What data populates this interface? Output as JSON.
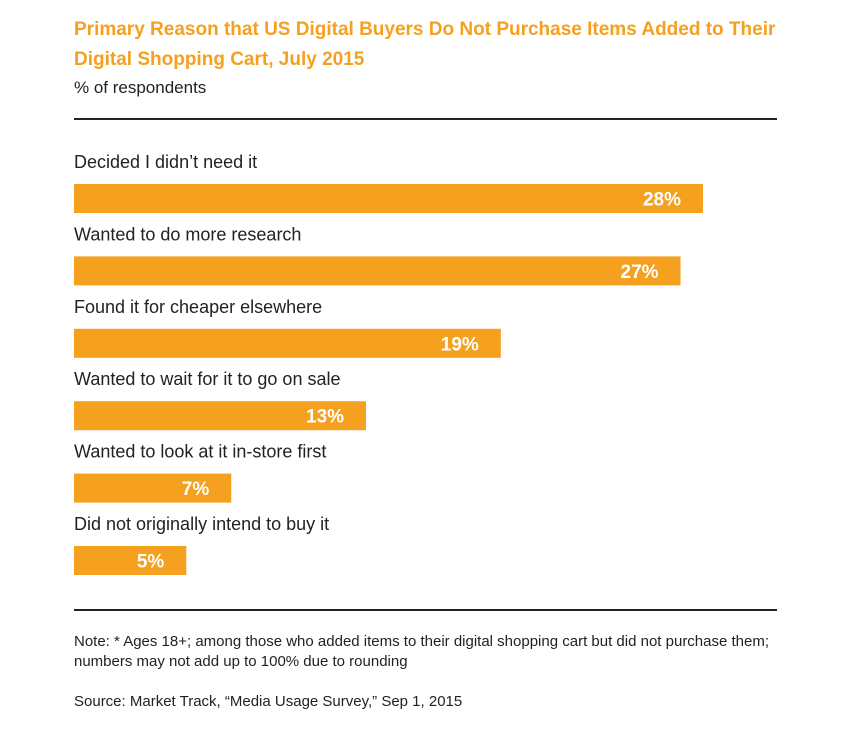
{
  "header": {
    "title": "Primary Reason that US Digital Buyers Do Not Purchase Items Added to Their Digital Shopping Cart, July 2015",
    "subtitle": "% of respondents"
  },
  "footer": {
    "note": "Note: * Ages 18+; among those who added items to their digital shopping cart but did not purchase them; numbers may not add up to 100% due to rounding",
    "source": "Source: Market Track, “Media Usage Survey,” Sep 1, 2015"
  },
  "colors": {
    "bar": "#f5a01e",
    "value_label": "#ffffff",
    "text": "#222222"
  },
  "chart_data": {
    "type": "bar",
    "orientation": "horizontal",
    "title": "Primary Reason that US Digital Buyers Do Not Purchase Items Added to Their Digital Shopping Cart, July 2015",
    "categories": [
      "Decided I didn’t need it",
      "Wanted to do more research",
      "Found it for cheaper elsewhere",
      "Wanted to wait for it to go on sale",
      "Wanted to look at it in-store first",
      "Did not originally intend to buy it"
    ],
    "values": [
      28,
      27,
      19,
      13,
      7,
      5
    ],
    "value_labels": [
      "28%",
      "27%",
      "19%",
      "13%",
      "7%",
      "5%"
    ],
    "unit": "%",
    "xlabel": "",
    "ylabel": "% of respondents",
    "xlim": [
      0,
      28
    ],
    "grid": false,
    "legend": "none"
  }
}
